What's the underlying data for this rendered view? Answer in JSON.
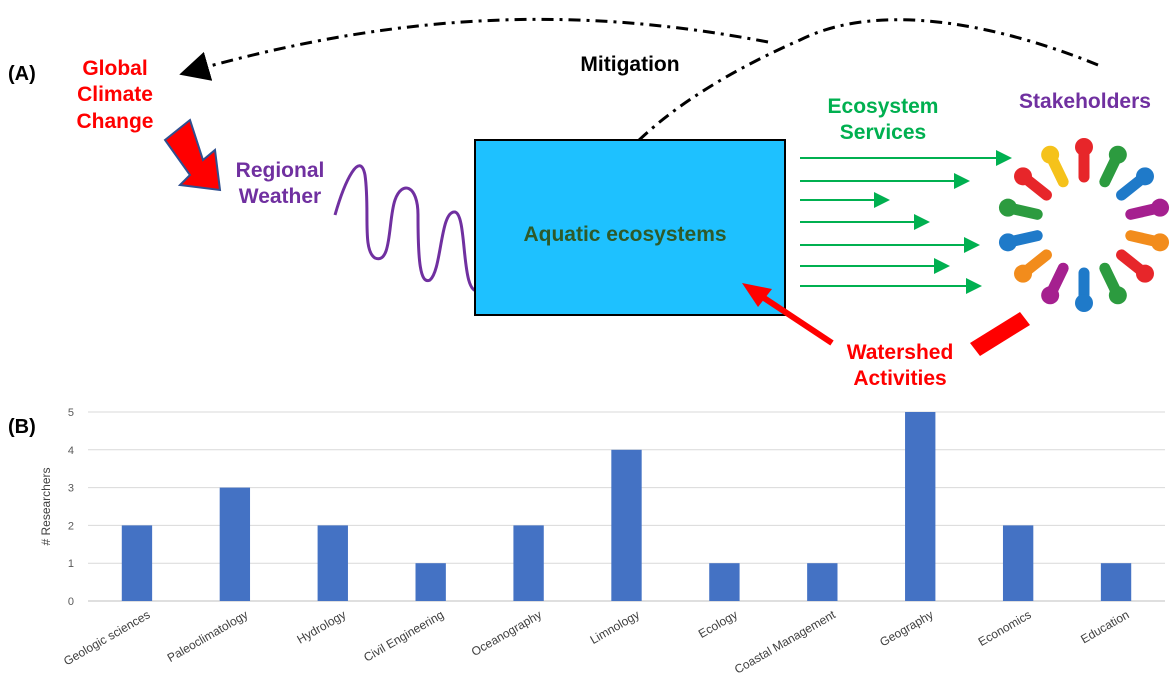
{
  "panel_a": {
    "panel_label": "(A)",
    "global_climate": [
      "Global",
      "Climate",
      "Change"
    ],
    "mitigation": "Mitigation",
    "regional_weather": [
      "Regional",
      "Weather"
    ],
    "aquatic": "Aquatic ecosystems",
    "ecosystem_services": [
      "Ecosystem",
      "Services"
    ],
    "stakeholders": "Stakeholders",
    "watershed": [
      "Watershed",
      "Activities"
    ],
    "colors": {
      "climate": "#ff0000",
      "weather": "#7030a0",
      "services": "#00b050",
      "stakeholders": "#7030a0",
      "aquatic_fill": "#1ec1ff",
      "aquatic_text": "#2e5a2a",
      "watershed": "#ff0000"
    },
    "stakeholder_icon": "people-circle-icon"
  },
  "panel_b": {
    "panel_label": "(B)",
    "chart_data": {
      "type": "bar",
      "categories": [
        "Geologic sciences",
        "Paleoclimatology",
        "Hydrology",
        "Civil Engineering",
        "Oceanography",
        "Limnology",
        "Ecology",
        "Coastal Management",
        "Geography",
        "Economics",
        "Education"
      ],
      "values": [
        2,
        3,
        2,
        1,
        2,
        4,
        1,
        1,
        5,
        2,
        1
      ],
      "ylabel": "# Researchers",
      "xlabel": "",
      "ylim": [
        0,
        5
      ],
      "yticks": [
        "0",
        "1",
        "2",
        "3",
        "4",
        "5"
      ],
      "grid": true,
      "bar_color": "#4472c4"
    }
  }
}
